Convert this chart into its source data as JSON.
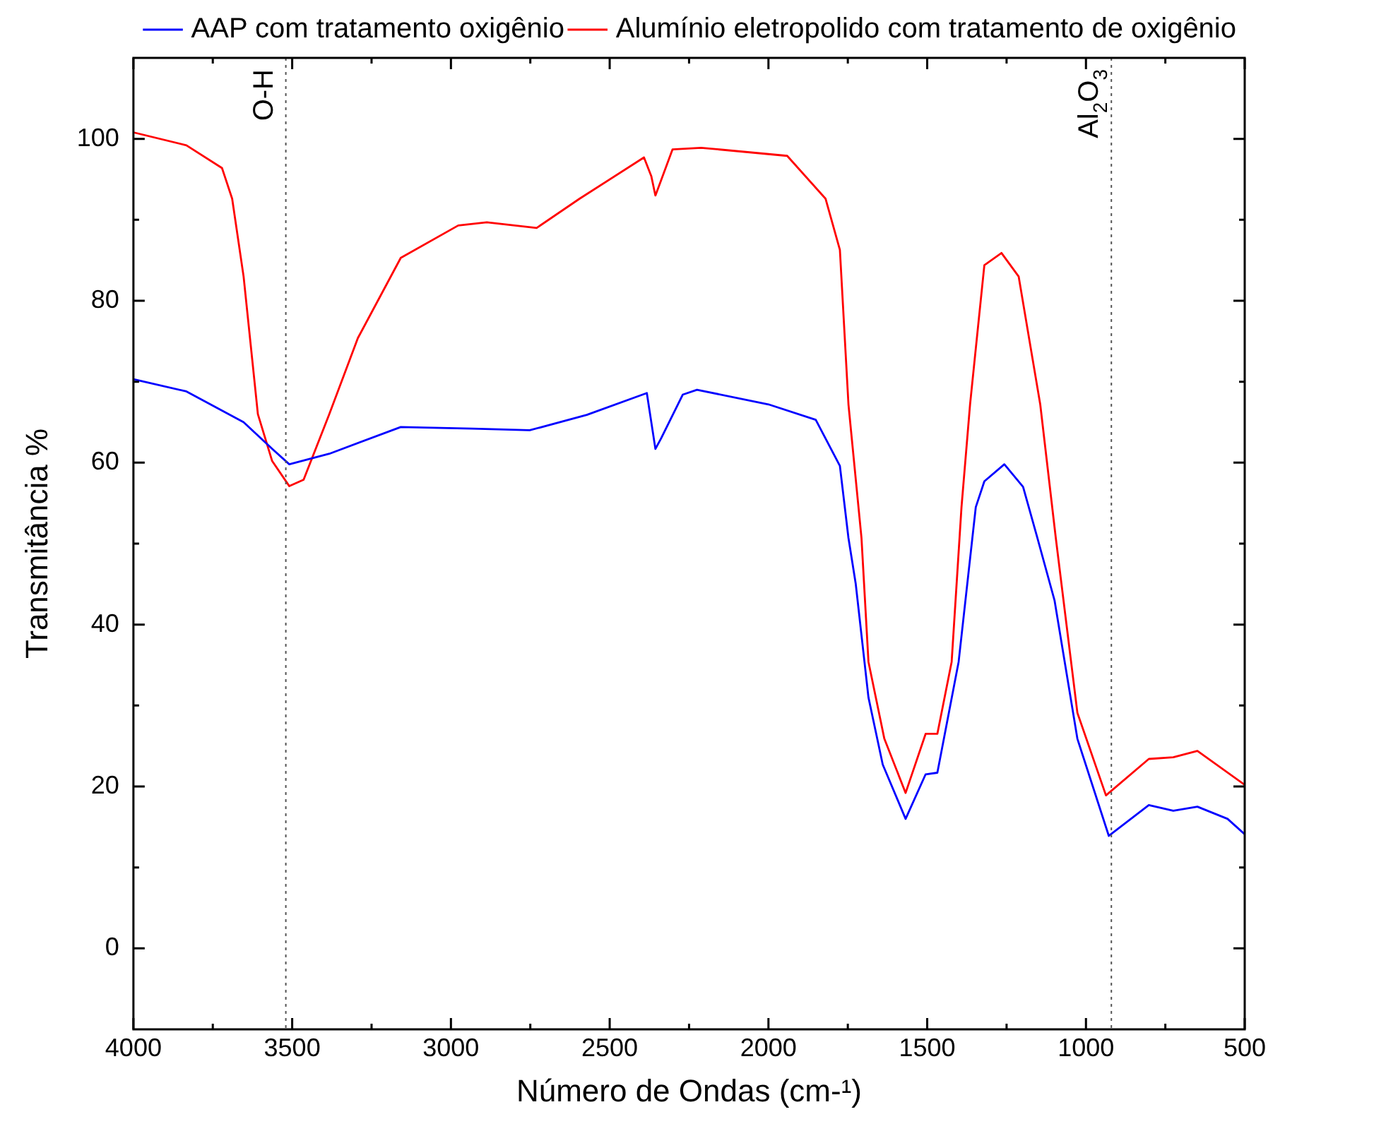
{
  "chart_data": {
    "type": "line",
    "xlabel": "Número de Ondas (cm-¹)",
    "ylabel": "Transmitância %",
    "xlim": [
      4000,
      500
    ],
    "ylim": [
      -10,
      110
    ],
    "xticks": [
      4000,
      3500,
      3000,
      2500,
      2000,
      1500,
      1000,
      500
    ],
    "yticks": [
      0,
      20,
      40,
      60,
      80,
      100
    ],
    "grid": false,
    "legend": "top",
    "marker": "none",
    "line_style": "solid",
    "ref_lines": [
      {
        "axis": "x",
        "value": 3520,
        "label": "O-H",
        "color": "#555555",
        "line_style": "dotted"
      },
      {
        "axis": "x",
        "value": 920,
        "label": "Al$_{2}$O$_{3}$",
        "color": "#555555",
        "line_style": "dotted"
      }
    ],
    "series": [
      {
        "name": "AAP com tratamento oxigênio",
        "color": "#0000ff",
        "x": [
          4000,
          3833,
          3653,
          3563,
          3509,
          3383,
          3158,
          2932,
          2752,
          2572,
          2383,
          2356,
          2338,
          2270,
          2225,
          2000,
          1851,
          1775,
          1748,
          1725,
          1685,
          1640,
          1568,
          1505,
          1468,
          1401,
          1347,
          1320,
          1257,
          1198,
          1153,
          1099,
          1027,
          928,
          802,
          725,
          649,
          554,
          500
        ],
        "values": [
          70.3,
          68.8,
          65,
          61.7,
          59.8,
          61.1,
          64.4,
          64.2,
          64,
          65.9,
          68.6,
          61.7,
          63,
          68.4,
          69,
          67.2,
          65.3,
          59.6,
          50.7,
          45,
          31,
          22.7,
          16,
          21.5,
          21.7,
          35.4,
          54.5,
          57.7,
          59.8,
          57,
          50.7,
          43,
          25.9,
          13.9,
          17.7,
          17,
          17.5,
          16,
          14.1
        ]
      },
      {
        "name": "Alumínio eletropolido com tratamento de oxigênio",
        "color": "#ff0000",
        "x": [
          4000,
          3833,
          3721,
          3689,
          3653,
          3608,
          3563,
          3509,
          3464,
          3383,
          3293,
          3158,
          2977,
          2887,
          2730,
          2595,
          2392,
          2369,
          2356,
          2338,
          2302,
          2212,
          1941,
          1820,
          1775,
          1748,
          1707,
          1685,
          1635,
          1568,
          1505,
          1468,
          1423,
          1392,
          1365,
          1320,
          1266,
          1212,
          1144,
          1095,
          1027,
          937,
          802,
          725,
          649,
          500
        ],
        "values": [
          100.8,
          99.2,
          96.4,
          92.6,
          83,
          66,
          60.2,
          57.1,
          57.9,
          66,
          75.4,
          85.3,
          89.3,
          89.7,
          89,
          92.6,
          97.7,
          95.4,
          93,
          94.9,
          98.7,
          98.9,
          97.9,
          92.6,
          86.3,
          67.2,
          50.7,
          35.4,
          25.9,
          19.2,
          26.5,
          26.5,
          35.4,
          54.5,
          67.2,
          84.4,
          85.9,
          83,
          67.2,
          50.7,
          29.1,
          18.9,
          23.4,
          23.6,
          24.4,
          20.2
        ]
      }
    ]
  }
}
